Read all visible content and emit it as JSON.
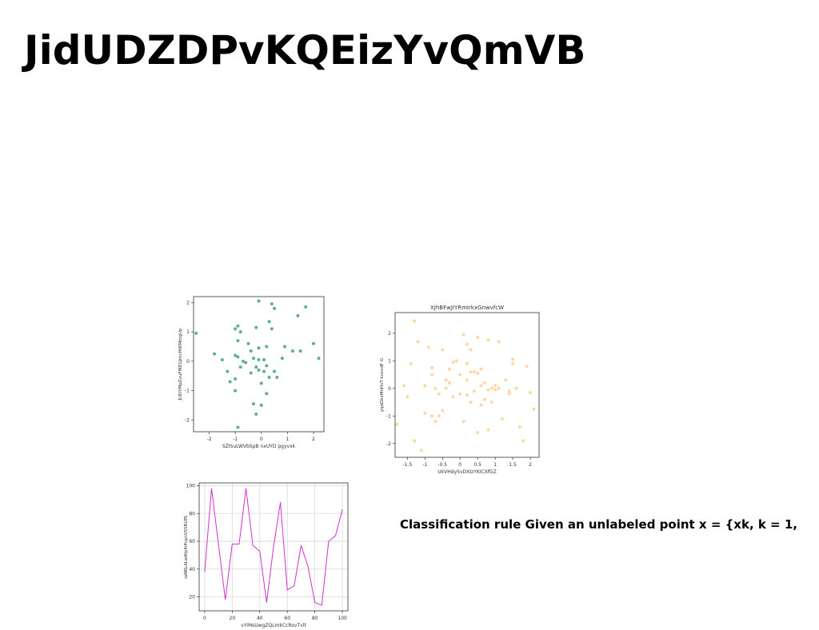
{
  "page": {
    "title": "JidUDZDPvKQEizYvQmVB",
    "rule_text": "Classification rule Given an unlabeled point x = {xk, k = 1,"
  },
  "chart_data": [
    {
      "type": "scatter",
      "title": "",
      "xlabel": "SZISuLWVbSpB nxUYD pgyvxk",
      "ylabel": "JUEIYMpZvuFfKEUJmcHtKMmgUp",
      "xlim": [
        -2.6,
        2.4
      ],
      "ylim": [
        -2.4,
        2.2
      ],
      "xticks": [
        -2,
        -1,
        0,
        1,
        2
      ],
      "yticks": [
        -2,
        -1,
        0,
        1,
        2
      ],
      "grid": false,
      "color": "#5fae93",
      "x": [
        -2.5,
        -1.8,
        -1.5,
        -1.3,
        -1.2,
        -1.0,
        -1.0,
        -0.9,
        -0.9,
        -0.8,
        -1.0,
        -0.9,
        -1.0,
        -0.8,
        -0.7,
        -0.5,
        -0.4,
        -0.4,
        -0.3,
        -0.3,
        -0.2,
        -0.2,
        -0.1,
        -0.1,
        0.0,
        0.0,
        0.1,
        0.2,
        0.2,
        0.3,
        0.3,
        0.4,
        0.4,
        0.5,
        0.5,
        0.6,
        0.8,
        0.9,
        1.2,
        1.4,
        1.5,
        1.7,
        2.0,
        2.2,
        -0.9,
        -0.1,
        0.1,
        -0.2,
        -0.6,
        0.2,
        -0.1
      ],
      "y": [
        0.95,
        0.25,
        0.05,
        -0.35,
        -0.7,
        0.2,
        -0.6,
        0.15,
        0.7,
        -0.2,
        1.1,
        1.2,
        -1.0,
        1.0,
        0.0,
        0.6,
        0.35,
        -0.4,
        -1.45,
        0.1,
        1.15,
        -1.8,
        0.45,
        -0.3,
        -1.5,
        -0.75,
        0.05,
        0.5,
        -1.1,
        1.35,
        -0.55,
        1.95,
        1.1,
        1.8,
        -0.35,
        -0.55,
        0.1,
        0.5,
        0.35,
        1.55,
        0.35,
        1.85,
        0.6,
        0.1,
        -2.25,
        2.05,
        -0.35,
        -0.2,
        -0.05,
        -0.15,
        0.05
      ]
    },
    {
      "type": "scatter",
      "title": "XJhBFwJIYRmIrkxGnwvfcW",
      "xlabel": "UkVHdySvDXIzYKICXfGZ",
      "ylabel": "yqaDkxMnHvT kuvvdF G",
      "xlim": [
        -1.85,
        2.25
      ],
      "ylim": [
        -2.5,
        2.75
      ],
      "xticks": [
        -1.5,
        -1.0,
        -0.5,
        0.0,
        0.5,
        1.0,
        1.5,
        2.0
      ],
      "yticks": [
        -2,
        -1,
        0,
        1,
        2
      ],
      "grid": false,
      "color": "#ffd7a6",
      "x": [
        -1.8,
        -1.6,
        -1.5,
        -1.4,
        -1.3,
        -1.2,
        -1.0,
        -0.9,
        -0.8,
        -0.8,
        -0.7,
        -0.6,
        -0.5,
        -0.5,
        -0.4,
        -0.3,
        -0.2,
        -0.2,
        -0.1,
        0.0,
        0.0,
        0.1,
        0.1,
        0.2,
        0.2,
        0.3,
        0.3,
        0.4,
        0.5,
        0.5,
        0.6,
        0.7,
        0.7,
        0.8,
        0.8,
        0.9,
        1.0,
        1.1,
        1.2,
        1.3,
        1.4,
        1.5,
        1.6,
        1.7,
        1.8,
        1.9,
        2.0,
        2.1,
        -1.3,
        -1.1,
        -0.7,
        -0.4,
        0.0,
        0.2,
        0.4,
        0.6,
        0.8,
        1.0,
        1.4,
        1.5,
        -1.0,
        -0.6,
        0.3,
        0.6,
        1.1,
        -0.3,
        0.2,
        0.5,
        0.9,
        -0.8
      ],
      "y": [
        -1.3,
        0.1,
        -0.3,
        0.9,
        2.45,
        1.7,
        0.1,
        1.5,
        -1.0,
        0.75,
        -1.2,
        -0.2,
        1.4,
        -0.8,
        0.0,
        0.7,
        0.95,
        -0.3,
        1.0,
        -0.2,
        0.5,
        1.95,
        -1.2,
        1.6,
        0.3,
        1.4,
        -0.5,
        0.6,
        1.85,
        -1.6,
        0.7,
        -0.4,
        0.2,
        -1.5,
        1.75,
        0.0,
        0.1,
        1.7,
        -1.1,
        0.3,
        -0.2,
        0.9,
        0.0,
        -1.4,
        -1.9,
        0.8,
        -0.15,
        -0.75,
        -1.9,
        -2.25,
        0.0,
        0.3,
        -0.2,
        0.9,
        -0.1,
        0.1,
        -0.05,
        -0.05,
        -0.1,
        1.05,
        -0.9,
        -1.0,
        0.6,
        -0.6,
        0.0,
        0.2,
        -0.25,
        0.55,
        -0.5,
        0.5
      ]
    },
    {
      "type": "line",
      "title": "",
      "xlabel": "vYiMsUwgZQLmkCcRovTvlt",
      "ylabel": "iaNKLALwWpIhPcpnVSSRUPL",
      "xlim": [
        -4,
        104
      ],
      "ylim": [
        10,
        102
      ],
      "xticks": [
        0,
        20,
        40,
        60,
        80,
        100
      ],
      "yticks": [
        20,
        40,
        60,
        80,
        100
      ],
      "grid": true,
      "color": "#cc33cc",
      "x": [
        0,
        5,
        10,
        15,
        20,
        25,
        30,
        35,
        40,
        45,
        50,
        55,
        60,
        65,
        70,
        75,
        80,
        85,
        90,
        95,
        100
      ],
      "y": [
        38,
        98,
        58,
        18,
        58,
        58,
        98,
        57,
        53,
        16,
        56,
        88,
        25,
        28,
        57,
        42,
        16,
        14,
        60,
        64,
        83
      ]
    }
  ]
}
